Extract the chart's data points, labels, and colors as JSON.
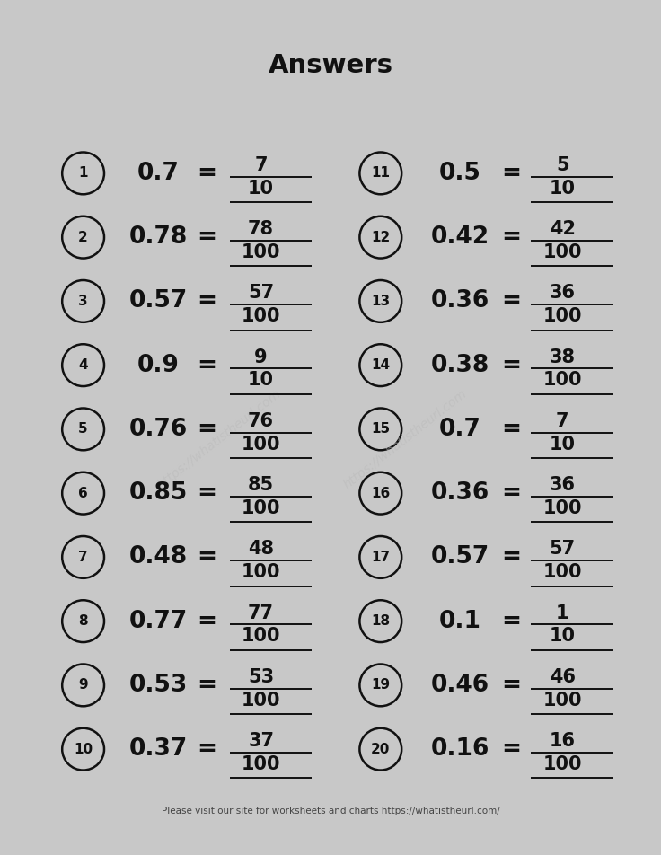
{
  "title": "Answers",
  "background_color": "#ffffff",
  "outer_background": "#c8c8c8",
  "footer": "Please visit our site for worksheets and charts https://whatistheurl.com/",
  "watermark_line1": "https://whatistheurl.com",
  "left_column": [
    {
      "num": 1,
      "decimal": "0.7",
      "numerator": "7",
      "denominator": "10"
    },
    {
      "num": 2,
      "decimal": "0.78",
      "numerator": "78",
      "denominator": "100"
    },
    {
      "num": 3,
      "decimal": "0.57",
      "numerator": "57",
      "denominator": "100"
    },
    {
      "num": 4,
      "decimal": "0.9",
      "numerator": "9",
      "denominator": "10"
    },
    {
      "num": 5,
      "decimal": "0.76",
      "numerator": "76",
      "denominator": "100"
    },
    {
      "num": 6,
      "decimal": "0.85",
      "numerator": "85",
      "denominator": "100"
    },
    {
      "num": 7,
      "decimal": "0.48",
      "numerator": "48",
      "denominator": "100"
    },
    {
      "num": 8,
      "decimal": "0.77",
      "numerator": "77",
      "denominator": "100"
    },
    {
      "num": 9,
      "decimal": "0.53",
      "numerator": "53",
      "denominator": "100"
    },
    {
      "num": 10,
      "decimal": "0.37",
      "numerator": "37",
      "denominator": "100"
    }
  ],
  "right_column": [
    {
      "num": 11,
      "decimal": "0.5",
      "numerator": "5",
      "denominator": "10"
    },
    {
      "num": 12,
      "decimal": "0.42",
      "numerator": "42",
      "denominator": "100"
    },
    {
      "num": 13,
      "decimal": "0.36",
      "numerator": "36",
      "denominator": "100"
    },
    {
      "num": 14,
      "decimal": "0.38",
      "numerator": "38",
      "denominator": "100"
    },
    {
      "num": 15,
      "decimal": "0.7",
      "numerator": "7",
      "denominator": "10"
    },
    {
      "num": 16,
      "decimal": "0.36",
      "numerator": "36",
      "denominator": "100"
    },
    {
      "num": 17,
      "decimal": "0.57",
      "numerator": "57",
      "denominator": "100"
    },
    {
      "num": 18,
      "decimal": "0.1",
      "numerator": "1",
      "denominator": "10"
    },
    {
      "num": 19,
      "decimal": "0.46",
      "numerator": "46",
      "denominator": "100"
    },
    {
      "num": 20,
      "decimal": "0.16",
      "numerator": "16",
      "denominator": "100"
    }
  ],
  "fig_width": 7.36,
  "fig_height": 9.52,
  "dpi": 100
}
